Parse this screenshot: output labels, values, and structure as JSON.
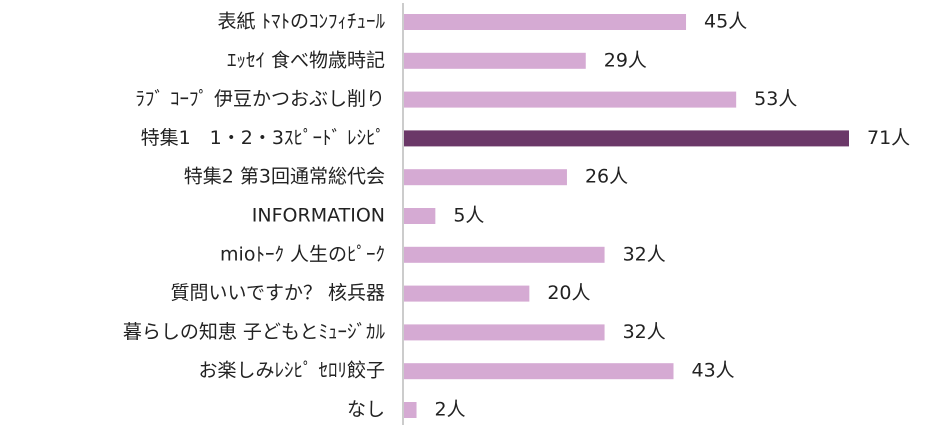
{
  "chart_data": {
    "type": "hbar",
    "categories": [
      "表紙 ﾄﾏﾄのｺﾝﾌｨﾁｭｰﾙ",
      "ｴｯｾｲ 食べ物歳時記",
      "ﾗﾌﾞ ｺｰﾌﾟ 伊豆かつおぶし削り",
      "特集1　1・2・3ｽﾋﾟｰﾄﾞ ﾚｼﾋﾟ",
      "特集2 第3回通常総代会",
      "INFORMATION",
      "mioﾄｰｸ 人生のﾋﾟｰｸ",
      "質問いいですか？ 核兵器",
      "暮らしの知恵 子どもとﾐｭｰｼﾞｶﾙ",
      "お楽しみﾚｼﾋﾟ ｾﾛﾘ餃子",
      "なし"
    ],
    "values": [
      45,
      29,
      53,
      71,
      26,
      5,
      32,
      20,
      32,
      43,
      2
    ],
    "value_labels": [
      "45人",
      "29人",
      "53人",
      "71人",
      "26人",
      "5人",
      "32人",
      "20人",
      "32人",
      "43人",
      "2人"
    ],
    "colors": [
      "#d5aad3",
      "#d5aad3",
      "#d5aad3",
      "#6b3868",
      "#d5aad3",
      "#d5aad3",
      "#d5aad3",
      "#d5aad3",
      "#d5aad3",
      "#d5aad3",
      "#d5aad3"
    ]
  }
}
